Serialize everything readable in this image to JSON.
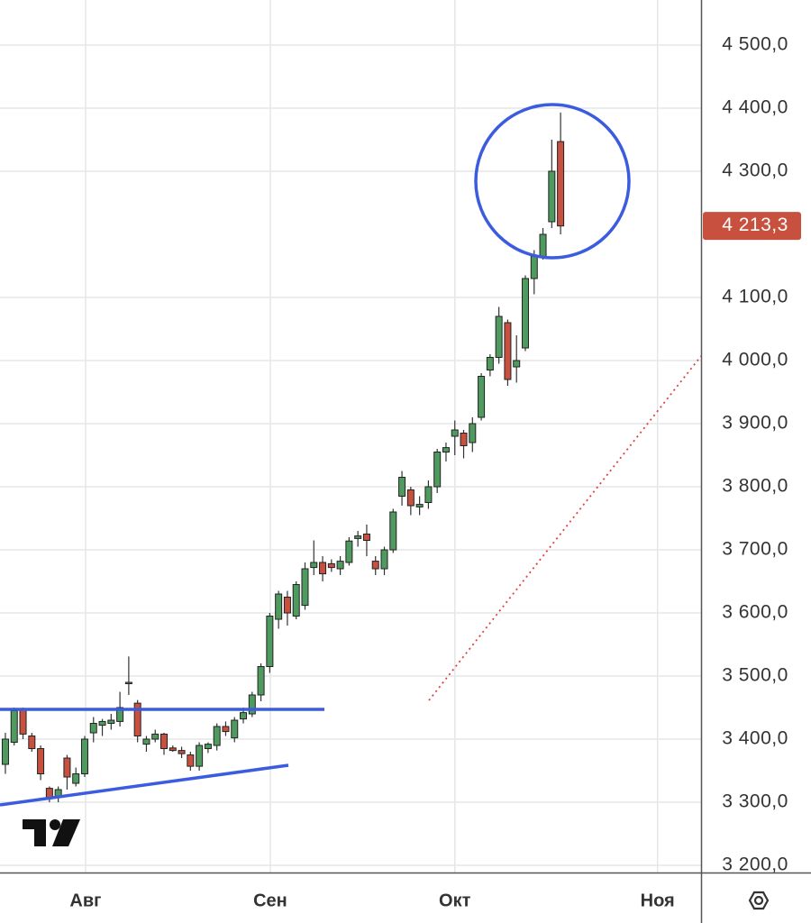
{
  "chart_data": {
    "type": "candlestick",
    "x": [
      0,
      1,
      2,
      3,
      4,
      5,
      6,
      7,
      8,
      9,
      10,
      11,
      12,
      13,
      14,
      15,
      16,
      17,
      18,
      19,
      20,
      21,
      22,
      23,
      24,
      25,
      26,
      27,
      28,
      29,
      30,
      31,
      32,
      33,
      34,
      35,
      36,
      37,
      38,
      39,
      40,
      41,
      42,
      43,
      44,
      45,
      46,
      47,
      48,
      49,
      50,
      51,
      52,
      53,
      54,
      55,
      56,
      57,
      58,
      59,
      60,
      61,
      62,
      63
    ],
    "open": [
      3360,
      3395,
      3448,
      3405,
      3385,
      3322,
      3308,
      3370,
      3330,
      3345,
      3410,
      3422,
      3425,
      3428,
      3488,
      3457,
      3392,
      3400,
      3408,
      3386,
      3382,
      3375,
      3357,
      3385,
      3390,
      3420,
      3402,
      3432,
      3440,
      3470,
      3515,
      3590,
      3625,
      3595,
      3612,
      3672,
      3680,
      3678,
      3670,
      3680,
      3718,
      3725,
      3682,
      3670,
      3700,
      3785,
      3795,
      3768,
      3775,
      3800,
      3855,
      3880,
      3885,
      3870,
      3910,
      3985,
      4005,
      4060,
      3990,
      4020,
      4130,
      4165,
      4220,
      4347
    ],
    "high": [
      3410,
      3450,
      3450,
      3410,
      3390,
      3325,
      3325,
      3375,
      3355,
      3405,
      3435,
      3432,
      3440,
      3475,
      3531,
      3462,
      3405,
      3415,
      3410,
      3390,
      3388,
      3380,
      3395,
      3395,
      3425,
      3428,
      3435,
      3450,
      3475,
      3520,
      3600,
      3635,
      3635,
      3650,
      3680,
      3715,
      3690,
      3685,
      3690,
      3720,
      3730,
      3740,
      3690,
      3705,
      3765,
      3825,
      3800,
      3785,
      3810,
      3860,
      3870,
      3905,
      3890,
      3910,
      3980,
      4010,
      4085,
      4065,
      4040,
      4135,
      4175,
      4210,
      4350,
      4393
    ],
    "low": [
      3345,
      3390,
      3400,
      3380,
      3335,
      3300,
      3300,
      3320,
      3325,
      3340,
      3395,
      3405,
      3415,
      3420,
      3470,
      3395,
      3380,
      3395,
      3375,
      3380,
      3370,
      3350,
      3350,
      3378,
      3382,
      3405,
      3395,
      3425,
      3435,
      3460,
      3505,
      3575,
      3580,
      3590,
      3605,
      3660,
      3650,
      3665,
      3660,
      3675,
      3705,
      3690,
      3660,
      3660,
      3695,
      3770,
      3755,
      3755,
      3765,
      3790,
      3840,
      3850,
      3845,
      3855,
      3905,
      3975,
      3995,
      3960,
      3965,
      4015,
      4105,
      4160,
      4210,
      4200
    ],
    "close": [
      3400,
      3445,
      3408,
      3385,
      3345,
      3306,
      3320,
      3340,
      3345,
      3400,
      3425,
      3428,
      3430,
      3450,
      3490,
      3405,
      3400,
      3408,
      3385,
      3382,
      3377,
      3357,
      3390,
      3392,
      3420,
      3412,
      3430,
      3442,
      3470,
      3515,
      3595,
      3630,
      3600,
      3645,
      3670,
      3680,
      3662,
      3672,
      3682,
      3714,
      3722,
      3715,
      3670,
      3700,
      3760,
      3815,
      3770,
      3772,
      3800,
      3855,
      3862,
      3890,
      3865,
      3900,
      3975,
      4005,
      4070,
      3970,
      4000,
      4130,
      4165,
      4200,
      4300,
      4213.3
    ],
    "up_color": "#4f9a5f",
    "down_color": "#c8503f",
    "xlim": [
      -0.61,
      78.94
    ],
    "xticks": [
      {
        "value": 9.1,
        "label": "Авг"
      },
      {
        "value": 30.06,
        "label": "Сен"
      },
      {
        "value": 51.0,
        "label": "Окт"
      },
      {
        "value": 74.0,
        "label": "Ноя"
      }
    ],
    "ylim": [
      3188.6,
      4571.4
    ],
    "yticks": [
      {
        "value": 3200,
        "label": "3 200,0"
      },
      {
        "value": 3300,
        "label": "3 300,0"
      },
      {
        "value": 3400,
        "label": "3 400,0"
      },
      {
        "value": 3500,
        "label": "3 500,0"
      },
      {
        "value": 3600,
        "label": "3 600,0"
      },
      {
        "value": 3700,
        "label": "3 700,0"
      },
      {
        "value": 3800,
        "label": "3 800,0"
      },
      {
        "value": 3900,
        "label": "3 900,0"
      },
      {
        "value": 4000,
        "label": "4 000,0"
      },
      {
        "value": 4100,
        "label": "4 100,0"
      },
      {
        "value": 4300,
        "label": "4 300,0"
      },
      {
        "value": 4400,
        "label": "4 400,0"
      },
      {
        "value": 4500,
        "label": "4 500,0"
      }
    ],
    "last_price": {
      "value": 4213.3,
      "label": "4 213,3"
    },
    "last_price_color": "#c8503f",
    "grid": true
  }
}
